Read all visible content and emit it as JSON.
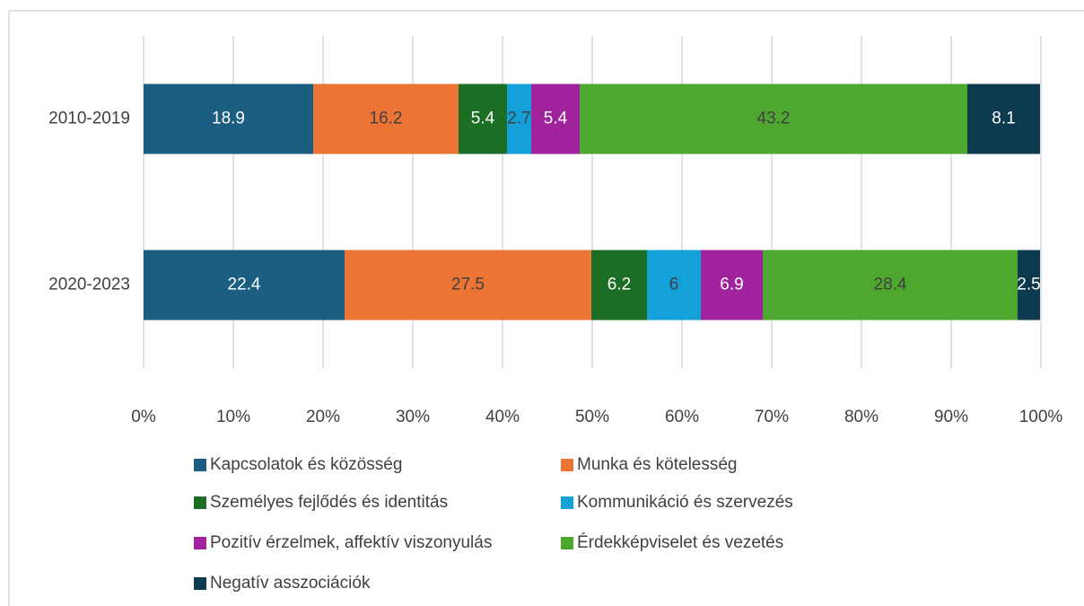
{
  "chart_data": {
    "type": "stacked_bar_horizontal",
    "categories": [
      "2010-2019",
      "2020-2023"
    ],
    "series": [
      {
        "name": "Kapcsolatok és közösség",
        "color": "#1b5e81",
        "label_color": "#ffffff",
        "values": [
          18.9,
          22.4
        ]
      },
      {
        "name": "Munka és kötelesség",
        "color": "#ec7535",
        "label_color": "#404040",
        "values": [
          16.2,
          27.5
        ]
      },
      {
        "name": "Személyes fejlődés és identitás",
        "color": "#1b6e24",
        "label_color": "#ffffff",
        "values": [
          5.4,
          6.2
        ]
      },
      {
        "name": "Kommunikáció és szervezés",
        "color": "#14a0d8",
        "label_color": "#404040",
        "values": [
          2.7,
          6
        ]
      },
      {
        "name": "Pozitív érzelmek, affektív viszonyulás",
        "color": "#a0229c",
        "label_color": "#ffffff",
        "values": [
          5.4,
          6.9
        ]
      },
      {
        "name": "Érdekképviselet és vezetés",
        "color": "#4ea72e",
        "label_color": "#404040",
        "values": [
          43.2,
          28.4
        ]
      },
      {
        "name": "Negatív asszociációk",
        "color": "#0e3a4f",
        "label_color": "#ffffff",
        "values": [
          8.1,
          2.5
        ]
      }
    ],
    "xlim": [
      0,
      100
    ],
    "xticks": [
      {
        "value": 0,
        "label": "0%"
      },
      {
        "value": 10,
        "label": "10%"
      },
      {
        "value": 20,
        "label": "20%"
      },
      {
        "value": 30,
        "label": "30%"
      },
      {
        "value": 40,
        "label": "40%"
      },
      {
        "value": 50,
        "label": "50%"
      },
      {
        "value": 60,
        "label": "60%"
      },
      {
        "value": 70,
        "label": "70%"
      },
      {
        "value": 80,
        "label": "80%"
      },
      {
        "value": 90,
        "label": "90%"
      },
      {
        "value": 100,
        "label": "100%"
      }
    ],
    "grid": true,
    "legend": "bottom"
  }
}
